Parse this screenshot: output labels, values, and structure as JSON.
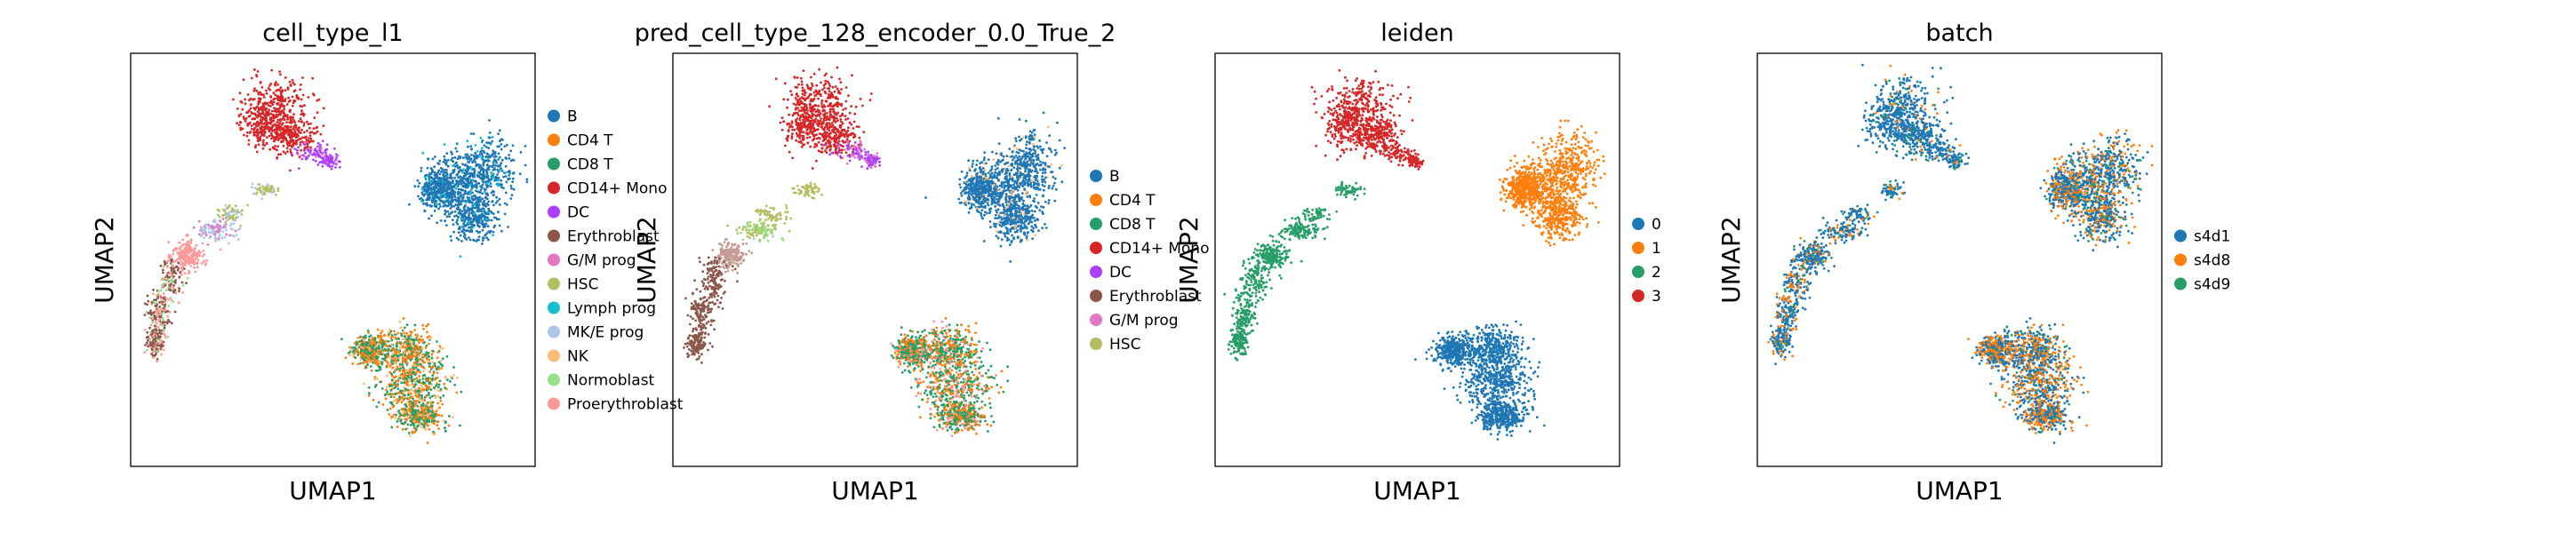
{
  "chart_data": [
    {
      "type": "scatter",
      "title": "cell_type_l1",
      "xlabel": "UMAP1",
      "ylabel": "UMAP2",
      "grid": false,
      "legend_placement": "right",
      "series": [
        {
          "name": "B",
          "color": "#1f77b4"
        },
        {
          "name": "CD4 T",
          "color": "#ff7f0e"
        },
        {
          "name": "CD8 T",
          "color": "#279e68"
        },
        {
          "name": "CD14+ Mono",
          "color": "#d62728"
        },
        {
          "name": "DC",
          "color": "#aa40fc"
        },
        {
          "name": "Erythroblast",
          "color": "#8c564b"
        },
        {
          "name": "G/M prog",
          "color": "#e377c2"
        },
        {
          "name": "HSC",
          "color": "#b5bd61"
        },
        {
          "name": "Lymph prog",
          "color": "#17becf"
        },
        {
          "name": "MK/E prog",
          "color": "#aec7e8"
        },
        {
          "name": "NK",
          "color": "#ffbb78"
        },
        {
          "name": "Normoblast",
          "color": "#98df8a"
        },
        {
          "name": "Proerythroblast",
          "color": "#ff9896"
        }
      ]
    },
    {
      "type": "scatter",
      "title": "pred_cell_type_128_encoder_0.0_True_2",
      "xlabel": "UMAP1",
      "ylabel": "UMAP2",
      "grid": false,
      "legend_placement": "right",
      "series": [
        {
          "name": "B",
          "color": "#1f77b4"
        },
        {
          "name": "CD4 T",
          "color": "#ff7f0e"
        },
        {
          "name": "CD8 T",
          "color": "#279e68"
        },
        {
          "name": "CD14+ Mono",
          "color": "#d62728"
        },
        {
          "name": "DC",
          "color": "#aa40fc"
        },
        {
          "name": "Erythroblast",
          "color": "#8c564b"
        },
        {
          "name": "G/M prog",
          "color": "#e377c2"
        },
        {
          "name": "HSC",
          "color": "#b5bd61"
        }
      ]
    },
    {
      "type": "scatter",
      "title": "leiden",
      "xlabel": "UMAP1",
      "ylabel": "UMAP2",
      "grid": false,
      "legend_placement": "right",
      "series": [
        {
          "name": "0",
          "color": "#1f77b4"
        },
        {
          "name": "1",
          "color": "#ff7f0e"
        },
        {
          "name": "2",
          "color": "#279e68"
        },
        {
          "name": "3",
          "color": "#d62728"
        }
      ]
    },
    {
      "type": "scatter",
      "title": "batch",
      "xlabel": "UMAP1",
      "ylabel": "UMAP2",
      "grid": false,
      "legend_placement": "right",
      "series": [
        {
          "name": "s4d1",
          "color": "#1f77b4"
        },
        {
          "name": "s4d8",
          "color": "#ff7f0e"
        },
        {
          "name": "s4d9",
          "color": "#279e68"
        }
      ]
    }
  ]
}
